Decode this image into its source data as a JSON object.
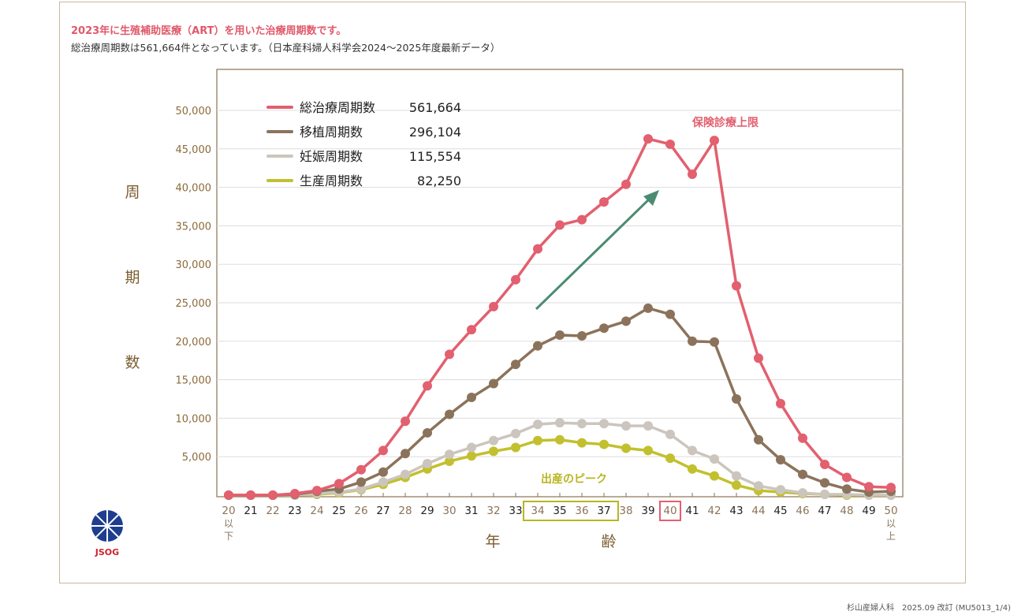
{
  "header": {
    "title": "2023年に生殖補助医療（ART）を用いた治療周期数です。",
    "subtitle": "総治療周期数は561,664件となっています。（日本産科婦人科学会2024〜2025年度最新データ）"
  },
  "footer": "杉山産婦人科　2025.09 改訂 (MU5013_1/4)",
  "logo": {
    "text": "JSOG"
  },
  "chart_data": {
    "type": "line",
    "ylabel": "周期数",
    "xlabel": "年齢",
    "ylim": [
      0,
      55000
    ],
    "yticks": [
      "5,000",
      "10,000",
      "15,000",
      "20,000",
      "25,000",
      "30,000",
      "35,000",
      "40,000",
      "45,000",
      "50,000"
    ],
    "ytick_values": [
      5000,
      10000,
      15000,
      20000,
      25000,
      30000,
      35000,
      40000,
      45000,
      50000
    ],
    "ylabel_chars": [
      "周",
      "期",
      "数"
    ],
    "xlabel_chars": [
      "年",
      "齢"
    ],
    "categories": [
      "20",
      "21",
      "22",
      "23",
      "24",
      "25",
      "26",
      "27",
      "28",
      "29",
      "30",
      "31",
      "32",
      "33",
      "34",
      "35",
      "36",
      "37",
      "38",
      "39",
      "40",
      "41",
      "42",
      "43",
      "44",
      "45",
      "46",
      "47",
      "48",
      "49",
      "50"
    ],
    "category_sublabels": {
      "20": "以下",
      "50": "以上"
    },
    "grid": true,
    "legend_position": "top-left",
    "series": [
      {
        "name": "総治療周期数",
        "total": "561,664",
        "color": "#e2606f",
        "values": [
          0,
          0,
          0,
          200,
          600,
          1500,
          3300,
          5800,
          9600,
          14200,
          18300,
          21500,
          24500,
          28000,
          32000,
          35100,
          35800,
          38100,
          40400,
          46300,
          45600,
          41700,
          46100,
          27200,
          17800,
          11900,
          7400,
          4000,
          2300,
          1100,
          1000
        ]
      },
      {
        "name": "移植周期数",
        "total": "296,104",
        "color": "#8b735b",
        "values": [
          0,
          0,
          0,
          100,
          500,
          800,
          1700,
          3000,
          5400,
          8100,
          10500,
          12700,
          14500,
          17000,
          19400,
          20800,
          20700,
          21700,
          22600,
          24300,
          23500,
          20000,
          19900,
          12500,
          7200,
          4600,
          2700,
          1600,
          800,
          400,
          500
        ]
      },
      {
        "name": "妊娠周期数",
        "total": "115,554",
        "color": "#cbc5bd",
        "values": [
          0,
          0,
          0,
          0,
          200,
          400,
          800,
          1700,
          2700,
          4100,
          5300,
          6200,
          7100,
          8000,
          9200,
          9400,
          9300,
          9300,
          9000,
          9000,
          7900,
          5800,
          4700,
          2500,
          1200,
          700,
          300,
          100,
          100,
          0,
          0
        ]
      },
      {
        "name": "生産周期数",
        "total": "82,250",
        "color": "#c2c02e",
        "values": [
          0,
          0,
          0,
          0,
          100,
          300,
          700,
          1400,
          2300,
          3400,
          4400,
          5100,
          5700,
          6200,
          7100,
          7200,
          6800,
          6600,
          6100,
          5800,
          4800,
          3400,
          2500,
          1300,
          600,
          400,
          200,
          100,
          0,
          0,
          0
        ]
      }
    ],
    "annotations": [
      {
        "text": "保険診療上限",
        "color": "#e2606f",
        "highlight": "40"
      },
      {
        "text": "出産のピーク",
        "color": "#b8b620",
        "highlight_range": [
          "34",
          "37"
        ]
      }
    ],
    "arrow_color": "#4a8c72"
  }
}
